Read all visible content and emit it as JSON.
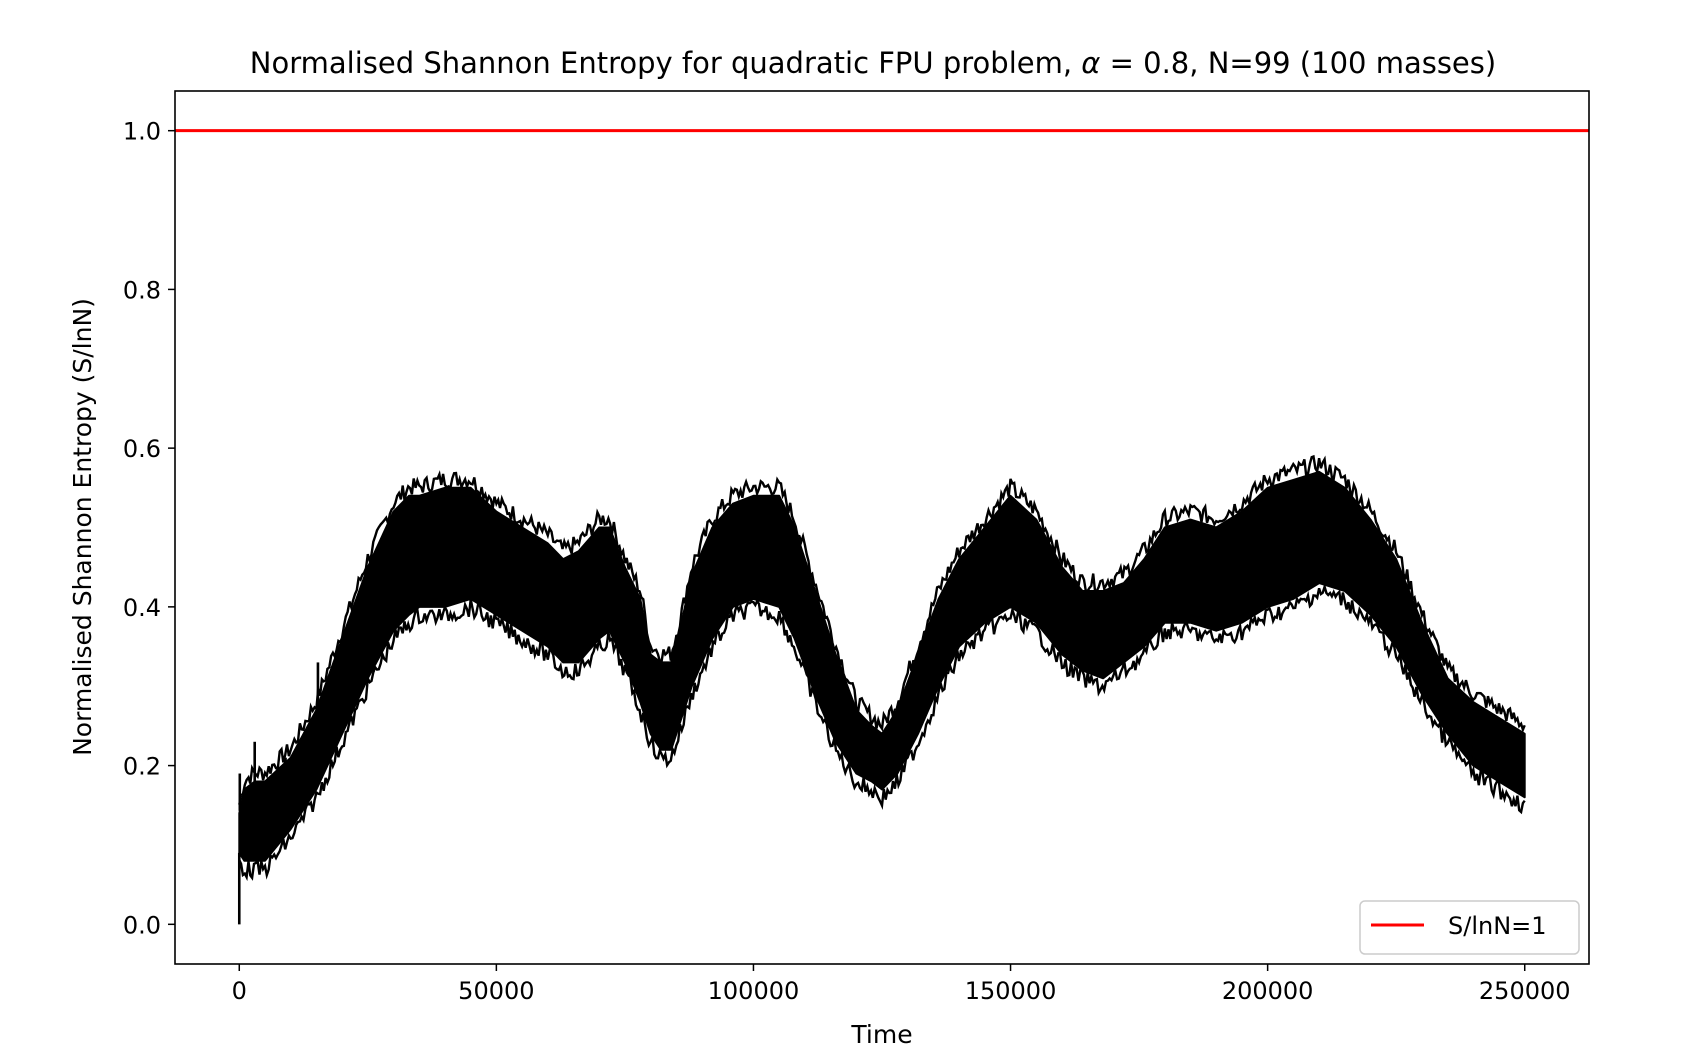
{
  "chart_data": {
    "type": "line",
    "title_prefix": "Normalised Shannon Entropy for quadratic FPU problem, ",
    "title_symbol": "α",
    "title_suffix": " = 0.8, N=99 (100 masses)",
    "xlabel": "Time",
    "ylabel": "Normalised Shannon Entropy (S/lnN)",
    "xlim": [
      -12500,
      262500
    ],
    "ylim": [
      -0.05,
      1.05
    ],
    "xticks": [
      0,
      50000,
      100000,
      150000,
      200000,
      250000
    ],
    "xtick_labels": [
      "0",
      "50000",
      "100000",
      "150000",
      "200000",
      "250000"
    ],
    "yticks": [
      0.0,
      0.2,
      0.4,
      0.6,
      0.8,
      1.0
    ],
    "ytick_labels": [
      "0.0",
      "0.2",
      "0.4",
      "0.6",
      "0.8",
      "1.0"
    ],
    "grid": false,
    "legend_position": "lower-right",
    "series": [
      {
        "name": "",
        "color": "#000000",
        "style": "oscillating band",
        "x": [
          0,
          1000,
          3000,
          5000,
          10000,
          15000,
          20000,
          25000,
          30000,
          33000,
          35000,
          40000,
          45000,
          50000,
          55000,
          60000,
          63000,
          66000,
          70000,
          72000,
          75000,
          78000,
          80000,
          82000,
          84000,
          86000,
          88000,
          92000,
          96000,
          100000,
          105000,
          108000,
          112000,
          116000,
          120000,
          123000,
          125000,
          128000,
          132000,
          136000,
          140000,
          145000,
          150000,
          155000,
          160000,
          164000,
          168000,
          172000,
          176000,
          180000,
          185000,
          190000,
          195000,
          200000,
          205000,
          210000,
          215000,
          220000,
          225000,
          230000,
          235000,
          240000,
          245000,
          250000
        ],
        "upper": [
          0.14,
          0.17,
          0.18,
          0.18,
          0.21,
          0.27,
          0.36,
          0.45,
          0.52,
          0.54,
          0.54,
          0.55,
          0.55,
          0.52,
          0.5,
          0.48,
          0.46,
          0.47,
          0.5,
          0.5,
          0.45,
          0.41,
          0.34,
          0.33,
          0.33,
          0.38,
          0.44,
          0.5,
          0.53,
          0.54,
          0.54,
          0.5,
          0.42,
          0.34,
          0.27,
          0.25,
          0.24,
          0.27,
          0.34,
          0.41,
          0.46,
          0.5,
          0.54,
          0.51,
          0.45,
          0.42,
          0.42,
          0.43,
          0.46,
          0.5,
          0.51,
          0.5,
          0.52,
          0.55,
          0.56,
          0.57,
          0.55,
          0.51,
          0.46,
          0.38,
          0.31,
          0.28,
          0.26,
          0.24
        ],
        "lower": [
          0.09,
          0.08,
          0.08,
          0.08,
          0.12,
          0.17,
          0.24,
          0.31,
          0.37,
          0.39,
          0.4,
          0.4,
          0.41,
          0.39,
          0.37,
          0.35,
          0.33,
          0.33,
          0.36,
          0.37,
          0.33,
          0.28,
          0.24,
          0.22,
          0.22,
          0.26,
          0.3,
          0.36,
          0.4,
          0.41,
          0.4,
          0.36,
          0.29,
          0.23,
          0.19,
          0.18,
          0.17,
          0.19,
          0.24,
          0.3,
          0.35,
          0.38,
          0.4,
          0.38,
          0.34,
          0.32,
          0.31,
          0.33,
          0.35,
          0.38,
          0.38,
          0.37,
          0.38,
          0.4,
          0.41,
          0.43,
          0.42,
          0.39,
          0.35,
          0.29,
          0.24,
          0.2,
          0.18,
          0.16
        ]
      },
      {
        "name": "S/lnN=1",
        "color": "#ff0000",
        "style": "line",
        "x": [
          -12500,
          262500
        ],
        "values": [
          1.0,
          1.0
        ]
      }
    ],
    "spikes": [
      {
        "x": 0,
        "y": 0.0
      },
      {
        "x": 100,
        "y": 0.19
      },
      {
        "x": 3000,
        "y": 0.23
      },
      {
        "x": 9000,
        "y": 0.21
      },
      {
        "x": 15300,
        "y": 0.33
      },
      {
        "x": 21000,
        "y": 0.35
      }
    ]
  }
}
